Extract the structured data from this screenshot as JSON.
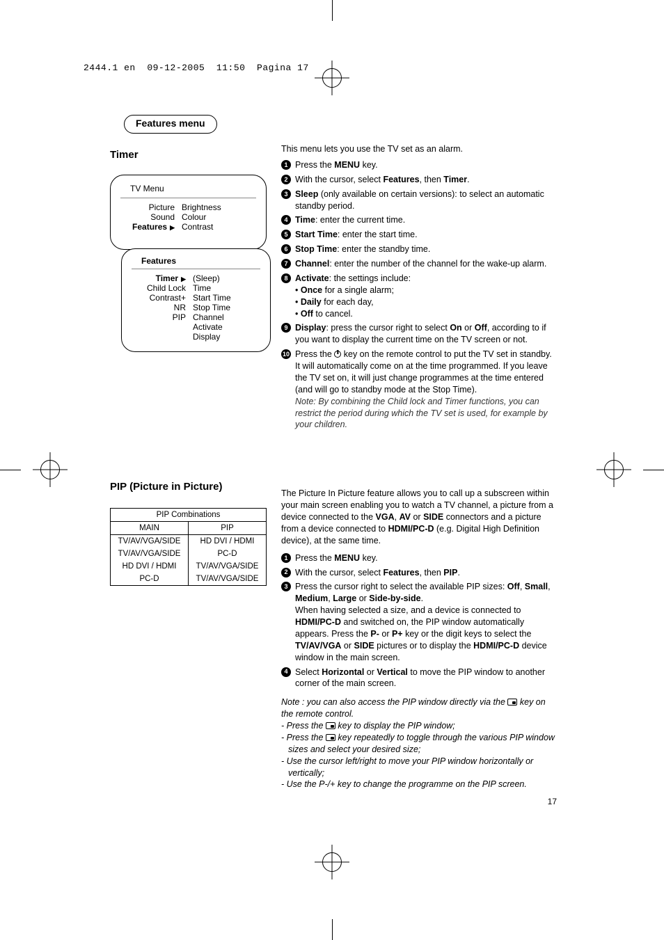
{
  "header_line": "2444.1 en  09-12-2005  11:50  Pagina 17",
  "pill_title": "Features menu",
  "timer": {
    "heading": "Timer",
    "intro": "This menu lets you use the TV set as an alarm.",
    "steps": [
      {
        "prefix": "Press the ",
        "bold1": "MENU",
        "suffix1": " key."
      },
      {
        "prefix": "With the cursor, select ",
        "bold1": "Features",
        "mid1": ", then ",
        "bold2": "Timer",
        "suffix1": "."
      },
      {
        "boldlead": "Sleep",
        "rest": " (only available on certain versions): to select an automatic standby period."
      },
      {
        "boldlead": "Time",
        "rest": ": enter the current time."
      },
      {
        "boldlead": "Start Time",
        "rest": ": enter the start time."
      },
      {
        "boldlead": "Stop Time",
        "rest": ": enter the standby time."
      },
      {
        "boldlead": "Channel",
        "rest": ": enter the number of the channel for the wake-up alarm."
      },
      {
        "boldlead": "Activate",
        "rest": ": the settings include:",
        "subs": [
          {
            "b": "Once",
            "t": " for a single alarm;"
          },
          {
            "b": "Daily",
            "t": " for each day,"
          },
          {
            "b": "Off",
            "t": " to cancel."
          }
        ]
      },
      {
        "boldlead": "Display",
        "rest_parts": [
          ": press the cursor right to select ",
          "On",
          " or ",
          "Off",
          ", according to if you want to display the current time on the TV screen or not."
        ]
      },
      {
        "power_step": true,
        "parts": [
          "Press the ",
          " key on the remote control to put the TV set in standby. It will automatically come on at the time programmed. If you leave the TV set on, it will just change programmes at the time entered (and will go to standby mode at the Stop Time)."
        ],
        "note": "Note: By combining the Child lock and Timer functions, you can restrict the period during which the TV set is used, for example by your children."
      }
    ],
    "menu_outer": {
      "title": "TV Menu",
      "rows": [
        {
          "l": "Picture",
          "r": "Brightness"
        },
        {
          "l": "Sound",
          "r": "Colour"
        },
        {
          "lb": "Features",
          "tri": true,
          "r": "Contrast"
        }
      ]
    },
    "menu_inner": {
      "title": "Features",
      "rows": [
        {
          "lb": "Timer",
          "tri": true,
          "r": "(Sleep)"
        },
        {
          "l": "Child Lock",
          "r": "Time"
        },
        {
          "l": "Contrast+",
          "r": "Start Time"
        },
        {
          "l": "NR",
          "r": "Stop Time"
        },
        {
          "l": "PIP",
          "r": "Channel"
        },
        {
          "l": "",
          "r": "Activate"
        },
        {
          "l": "",
          "r": "Display"
        }
      ]
    }
  },
  "pip": {
    "heading": "PIP (Picture in Picture)",
    "intro_parts": [
      "The Picture In Picture feature allows you to call up a subscreen within your main screen enabling you to watch a TV channel, a picture from a device connected to the ",
      "VGA",
      ", ",
      "AV",
      " or ",
      "SIDE",
      " connectors and a picture from a device connected to ",
      "HDMI/PC-D",
      " (e.g. Digital High Definition device), at the same time."
    ],
    "steps": [
      {
        "prefix": "Press the ",
        "bold1": "MENU",
        "suffix1": " key."
      },
      {
        "prefix": "With the cursor, select ",
        "bold1": "Features",
        "mid1": ", then ",
        "bold2": "PIP",
        "suffix1": "."
      },
      {
        "parts": [
          "Press the cursor right to select the available PIP sizes: ",
          "Off",
          ", ",
          "Small",
          ", ",
          "Medium",
          ", ",
          "Large",
          " or ",
          "Side-by-side",
          ".",
          "\nWhen having selected a size, and a device is connected to ",
          "HDMI/PC-D",
          " and switched on, the PIP window automatically appears. Press the ",
          "P-",
          " or ",
          "P+",
          " key or the digit keys to select the ",
          "TV/AV/VGA",
          " or ",
          "SIDE",
          " pictures or to display the ",
          "HDMI/PC-D",
          " device window in the main screen."
        ],
        "bold_idx": [
          1,
          3,
          5,
          7,
          9,
          12,
          14,
          16,
          18,
          20,
          22
        ]
      },
      {
        "parts": [
          "Select ",
          "Horizontal",
          " or ",
          "Vertical",
          " to move the PIP window to another corner of the main screen."
        ],
        "bold_idx": [
          1,
          3
        ]
      }
    ],
    "footnote_lead": "Note :  you can also access the PIP window directly via the ",
    "footnote_tail": " key on the remote control.",
    "footnotes": [
      {
        "pre": "- Press the ",
        "icon": true,
        "post": " key to display the PIP window;"
      },
      {
        "pre": "- Press the ",
        "icon": true,
        "post": " key repeatedly to toggle through the various PIP window sizes and select your desired size;"
      },
      {
        "text": "- Use the cursor left/right to move your PIP window horizontally or vertically;"
      },
      {
        "text": "- Use the P-/+ key to change the programme on the PIP screen."
      }
    ],
    "table": {
      "caption": "PIP Combinations",
      "head": [
        "MAIN",
        "PIP"
      ],
      "rows": [
        [
          "TV/AV/VGA/SIDE",
          "HD DVI / HDMI"
        ],
        [
          "TV/AV/VGA/SIDE",
          "PC-D"
        ],
        [
          "HD DVI / HDMI",
          "TV/AV/VGA/SIDE"
        ],
        [
          "PC-D",
          "TV/AV/VGA/SIDE"
        ]
      ]
    }
  },
  "page_number": "17"
}
